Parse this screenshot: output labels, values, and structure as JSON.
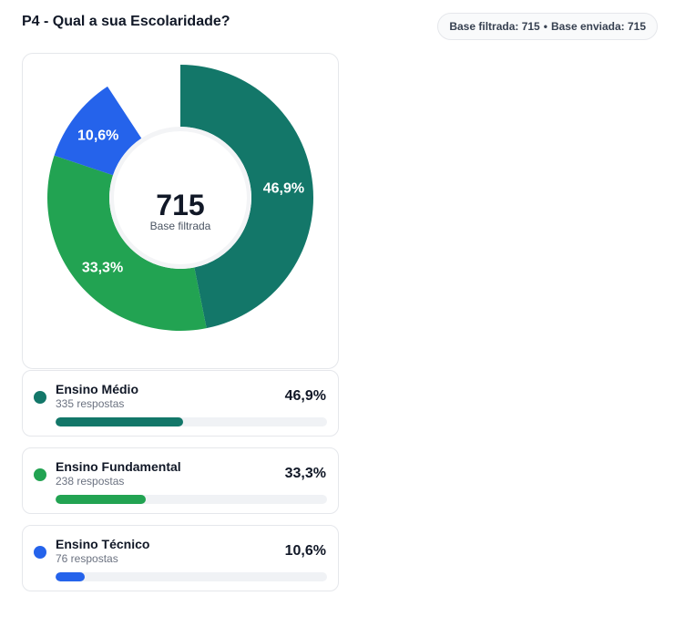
{
  "question": {
    "title": "P4 - Qual a sua Escolaridade?"
  },
  "base": {
    "filtered_label": "Base filtrada: 715",
    "sent_label": "Base enviada: 715",
    "separator": "•"
  },
  "chart_data": {
    "type": "pie",
    "variant": "donut",
    "center_value": "715",
    "center_label": "Base filtrada",
    "total": 715,
    "slices": [
      {
        "label": "Ensino Médio",
        "value": 335,
        "percent": 46.9,
        "percent_label": "46,9%",
        "color": "#137769"
      },
      {
        "label": "Ensino Fundamental",
        "value": 238,
        "percent": 33.3,
        "percent_label": "33,3%",
        "color": "#22a352"
      },
      {
        "label": "Ensino Técnico",
        "value": 76,
        "percent": 10.6,
        "percent_label": "10,6%",
        "color": "#2563eb"
      }
    ]
  },
  "legend": [
    {
      "label": "Ensino Médio",
      "count_label": "335 respostas",
      "percent_label": "46,9%",
      "fraction": 0.469,
      "color": "#137769"
    },
    {
      "label": "Ensino Fundamental",
      "count_label": "238 respostas",
      "percent_label": "33,3%",
      "fraction": 0.333,
      "color": "#22a352"
    },
    {
      "label": "Ensino Técnico",
      "count_label": "76 respostas",
      "percent_label": "10,6%",
      "fraction": 0.106,
      "color": "#2563eb"
    }
  ]
}
